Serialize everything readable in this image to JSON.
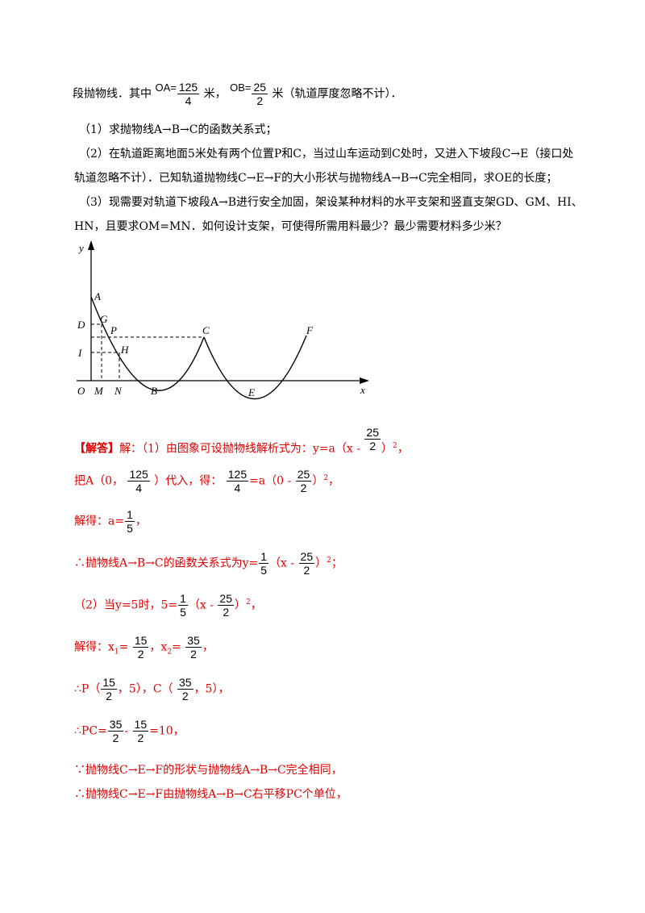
{
  "problem": {
    "l1_a": "段抛物线．其中",
    "oa_label": "OA=",
    "oa_num": "125",
    "oa_den": "4",
    "l1_b": "米，",
    "ob_label": "OB=",
    "ob_num": "25",
    "ob_den": "2",
    "l1_c": "米（轨道厚度忽略不计）．",
    "q1": "（1）求抛物线A→B→C的函数关系式；",
    "q2_line1": "（2）在轨道距离地面5米处有两个位置P和C，当过山车运动到C处时，又进入下坡段C→E（接口处",
    "q2_line2": "轨道忽略不计）．已知轨道抛物线C→E→F的大小形状与抛物线A→B→C完全相同，求OE的长度；",
    "q3_line1": "（3）现需要对轨道下坡段A→B进行安全加固，架设某种材料的水平支架和竖直支架GD、GM、HI、",
    "q3_line2": "HN，且要求OM=MN．如何设计支架，可使得所需用料最少？最少需要材料多少米？"
  },
  "figure": {
    "labels": {
      "y": "y",
      "x": "x",
      "O": "O",
      "A": "A",
      "G": "G",
      "D": "D",
      "P": "P",
      "C": "C",
      "F": "F",
      "I": "I",
      "H": "H",
      "M": "M",
      "N": "N",
      "B": "B",
      "E": "E"
    }
  },
  "solution": {
    "tag": "【解答】",
    "s1_a": "解：（1）由图象可设抛物线解析式为：y=a（x -",
    "f25": "25",
    "f2": "2",
    "s1_b": "）",
    "sq": "2",
    "comma": "，",
    "s2_a": "把A（0，",
    "f125": "125",
    "f4": "4",
    "s2_b": "）代入，得：",
    "s2_c": "=a（0 -",
    "s3_a": "解得：a=",
    "f1": "1",
    "f5": "5",
    "s4_a": "∴抛物线A→B→C的函数关系式为y=",
    "s4_b": "（x -",
    "s4_end": "；",
    "s5_a": "（2）当y=5时，5=",
    "s5_b": "（x -",
    "s6_a": "解得：x",
    "sub1": "1",
    "eq": "=",
    "s6_b": "，x",
    "sub2": "2",
    "f15": "15",
    "f35": "35",
    "s7_a": "∴P（",
    "s7_b": "，5），C（",
    "s7_c": "，5），",
    "s8_a": "∴PC=",
    "s8_minus": "-",
    "s8_b": "=10，",
    "s9": "∵抛物线C→E→F的形状与抛物线A→B→C完全相同，",
    "s10": "∴抛物线C→E→F由抛物线A→B→C右平移PC个单位，"
  }
}
